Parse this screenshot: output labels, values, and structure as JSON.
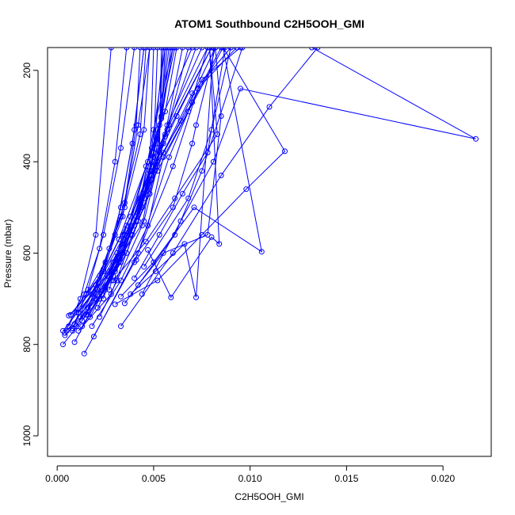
{
  "chart_data": {
    "type": "line",
    "title": "ATOM1 Southbound C2H5OOH_GMI",
    "xlabel": "C2H5OOH_GMI",
    "ylabel": "Pressure (mbar)",
    "xlim": [
      -0.0005,
      0.0225
    ],
    "ylim": [
      1045,
      150
    ],
    "y_reversed": true,
    "x_ticks": [
      0.0,
      0.005,
      0.01,
      0.015,
      0.02
    ],
    "x_tick_labels": [
      "0.000",
      "0.005",
      "0.010",
      "0.015",
      "0.020"
    ],
    "y_ticks": [
      200,
      400,
      600,
      800,
      1000
    ],
    "y_tick_labels": [
      "200",
      "400",
      "600",
      "800",
      "1000"
    ],
    "grid": false,
    "legend": "none",
    "series_color": "#0000ff",
    "marker": "open-circle",
    "series": [
      {
        "x": [
          0.0003,
          0.0018,
          0.0035,
          0.0052,
          0.0068,
          0.0078
        ],
        "y": [
          770,
          690,
          560,
          420,
          290,
          150
        ]
      },
      {
        "x": [
          0.0003,
          0.0022,
          0.004,
          0.0055,
          0.0065
        ],
        "y": [
          800,
          700,
          540,
          360,
          150
        ]
      },
      {
        "x": [
          0.0004,
          0.0025,
          0.0041,
          0.005,
          0.006
        ],
        "y": [
          780,
          680,
          530,
          330,
          150
        ]
      },
      {
        "x": [
          0.0006,
          0.0028,
          0.0044,
          0.0054,
          0.0059
        ],
        "y": [
          737,
          640,
          500,
          300,
          150
        ]
      },
      {
        "x": [
          0.0005,
          0.003,
          0.0046,
          0.0057,
          0.0075
        ],
        "y": [
          770,
          640,
          470,
          320,
          150
        ]
      },
      {
        "x": [
          0.0008,
          0.0033,
          0.0048,
          0.0062,
          0.008
        ],
        "y": [
          770,
          620,
          430,
          300,
          150
        ]
      },
      {
        "x": [
          0.0009,
          0.0034,
          0.0049,
          0.0064,
          0.0082
        ],
        "y": [
          795,
          600,
          430,
          310,
          150
        ]
      },
      {
        "x": [
          0.001,
          0.0031,
          0.0052,
          0.007,
          0.0085
        ],
        "y": [
          760,
          600,
          400,
          270,
          150
        ]
      },
      {
        "x": [
          0.0013,
          0.0036,
          0.0055,
          0.007,
          0.009
        ],
        "y": [
          760,
          600,
          380,
          250,
          150
        ]
      },
      {
        "x": [
          0.0014,
          0.004,
          0.006,
          0.0073,
          0.0093
        ],
        "y": [
          820,
          620,
          410,
          240,
          150
        ]
      },
      {
        "x": [
          0.0019,
          0.0042,
          0.0058,
          0.0075,
          0.0095
        ],
        "y": [
          783,
          600,
          390,
          220,
          150
        ]
      },
      {
        "x": [
          0.0007,
          0.0024,
          0.0038,
          0.0049,
          0.0056
        ],
        "y": [
          735,
          640,
          520,
          370,
          150
        ]
      },
      {
        "x": [
          0.0011,
          0.0026,
          0.0041,
          0.0052,
          0.0058
        ],
        "y": [
          730,
          650,
          520,
          350,
          150
        ]
      },
      {
        "x": [
          0.0012,
          0.0032,
          0.0047,
          0.0056,
          0.0062
        ],
        "y": [
          740,
          570,
          400,
          290,
          150
        ]
      },
      {
        "x": [
          0.0015,
          0.0029,
          0.0045,
          0.0053,
          0.0057
        ],
        "y": [
          735,
          620,
          470,
          320,
          150
        ]
      },
      {
        "x": [
          0.0017,
          0.0032,
          0.0047,
          0.0054,
          0.0056
        ],
        "y": [
          740,
          620,
          450,
          300,
          150
        ]
      },
      {
        "x": [
          0.0016,
          0.003,
          0.0043,
          0.0052,
          0.0061
        ],
        "y": [
          735,
          635,
          480,
          330,
          150
        ]
      },
      {
        "x": [
          0.0021,
          0.0032,
          0.0049,
          0.0057,
          0.0068
        ],
        "y": [
          720,
          620,
          440,
          330,
          150
        ]
      },
      {
        "x": [
          0.002,
          0.0035,
          0.0046,
          0.0054,
          0.007
        ],
        "y": [
          700,
          580,
          410,
          305,
          150
        ]
      },
      {
        "x": [
          0.0024,
          0.0034,
          0.005,
          0.0056,
          0.0072
        ],
        "y": [
          700,
          560,
          400,
          340,
          150
        ]
      },
      {
        "x": [
          0.0023,
          0.0038,
          0.005,
          0.0058,
          0.0078
        ],
        "y": [
          690,
          540,
          390,
          320,
          150
        ]
      },
      {
        "x": [
          0.0027,
          0.0036,
          0.0049,
          0.0056,
          0.008
        ],
        "y": [
          680,
          540,
          420,
          345,
          150
        ]
      },
      {
        "x": [
          0.0018,
          0.0033,
          0.0047,
          0.0055,
          0.0086
        ],
        "y": [
          760,
          660,
          540,
          390,
          150
        ]
      },
      {
        "x": [
          0.0022,
          0.0031,
          0.0044,
          0.0052,
          0.006
        ],
        "y": [
          740,
          660,
          540,
          360,
          150
        ]
      },
      {
        "x": [
          0.0028,
          0.0034,
          0.0045,
          0.0052,
          0.0055
        ],
        "y": [
          660,
          600,
          530,
          410,
          150
        ]
      },
      {
        "x": [
          0.0029,
          0.0039,
          0.0048,
          0.0053,
          0.0054
        ],
        "y": [
          650,
          560,
          470,
          380,
          150
        ]
      },
      {
        "x": [
          0.0032,
          0.0038,
          0.0045,
          0.005,
          0.0052
        ],
        "y": [
          610,
          560,
          480,
          380,
          150
        ]
      },
      {
        "x": [
          0.0027,
          0.0034,
          0.0044,
          0.0048,
          0.005
        ],
        "y": [
          640,
          580,
          500,
          420,
          150
        ]
      },
      {
        "x": [
          0.001,
          0.0022,
          0.0035,
          0.0045,
          0.0048
        ],
        "y": [
          730,
          650,
          500,
          330,
          150
        ]
      },
      {
        "x": [
          0.0009,
          0.002,
          0.0033,
          0.0043,
          0.0046
        ],
        "y": [
          755,
          670,
          520,
          340,
          150
        ]
      },
      {
        "x": [
          0.0015,
          0.0025,
          0.0033,
          0.004,
          0.0045
        ],
        "y": [
          690,
          620,
          500,
          330,
          150
        ]
      },
      {
        "x": [
          0.002,
          0.0027,
          0.0035,
          0.0041,
          0.0043
        ],
        "y": [
          670,
          590,
          490,
          320,
          150
        ]
      },
      {
        "x": [
          0.0006,
          0.0014,
          0.0022,
          0.003,
          0.0036
        ],
        "y": [
          760,
          690,
          590,
          400,
          150
        ]
      },
      {
        "x": [
          0.0008,
          0.0016,
          0.0024,
          0.0033,
          0.004
        ],
        "y": [
          765,
          680,
          560,
          370,
          150
        ]
      },
      {
        "x": [
          0.0011,
          0.0028,
          0.0042,
          0.005,
          0.0055
        ],
        "y": [
          770,
          690,
          530,
          380,
          150
        ]
      },
      {
        "x": [
          0.0004,
          0.0012,
          0.002,
          0.0028
        ],
        "y": [
          775,
          700,
          560,
          150
        ]
      },
      {
        "x": [
          0.0033,
          0.006,
          0.0085,
          0.011,
          0.0135
        ],
        "y": [
          760,
          600,
          430,
          280,
          150
        ]
      },
      {
        "x": [
          0.0035,
          0.0061,
          0.0075,
          0.0096
        ],
        "y": [
          710,
          560,
          420,
          150
        ]
      },
      {
        "x": [
          0.0044,
          0.0064,
          0.0081,
          0.0095,
          0.0217,
          0.0132
        ],
        "y": [
          690,
          530,
          400,
          240,
          350,
          150
        ]
      },
      {
        "x": [
          0.0045,
          0.0068,
          0.008,
          0.009
        ],
        "y": [
          630,
          480,
          330,
          150
        ]
      },
      {
        "x": [
          0.0041,
          0.006,
          0.007,
          0.0072,
          0.0082
        ],
        "y": [
          615,
          500,
          360,
          320,
          150
        ]
      },
      {
        "x": [
          0.0042,
          0.0055,
          0.0078,
          0.0085,
          0.0082
        ],
        "y": [
          670,
          600,
          560,
          300,
          150
        ]
      },
      {
        "x": [
          0.0033,
          0.005,
          0.0071,
          0.0106,
          0.0086
        ],
        "y": [
          695,
          620,
          500,
          597,
          150
        ]
      },
      {
        "x": [
          0.0029,
          0.0046,
          0.0061,
          0.0083,
          0.0079
        ],
        "y": [
          660,
          575,
          480,
          340,
          150
        ]
      },
      {
        "x": [
          0.0038,
          0.0051,
          0.0066,
          0.0072,
          0.0081
        ],
        "y": [
          690,
          640,
          580,
          697,
          150
        ]
      },
      {
        "x": [
          0.0047,
          0.0059,
          0.008,
          0.0084,
          0.0079
        ],
        "y": [
          593,
          697,
          565,
          580,
          150
        ]
      },
      {
        "x": [
          0.003,
          0.0052,
          0.0075,
          0.0098,
          0.0118,
          0.0086
        ],
        "y": [
          712,
          660,
          560,
          460,
          377,
          150
        ]
      },
      {
        "x": [
          0.004,
          0.0053,
          0.0065,
          0.0078,
          0.0087
        ],
        "y": [
          655,
          560,
          470,
          380,
          150
        ]
      },
      {
        "x": [
          0.0016,
          0.0024,
          0.0034,
          0.0042,
          0.0048
        ],
        "y": [
          720,
          635,
          520,
          320,
          150
        ]
      },
      {
        "x": [
          0.0013,
          0.0021,
          0.003,
          0.0039,
          0.0045
        ],
        "y": [
          748,
          680,
          560,
          360,
          150
        ]
      }
    ]
  }
}
